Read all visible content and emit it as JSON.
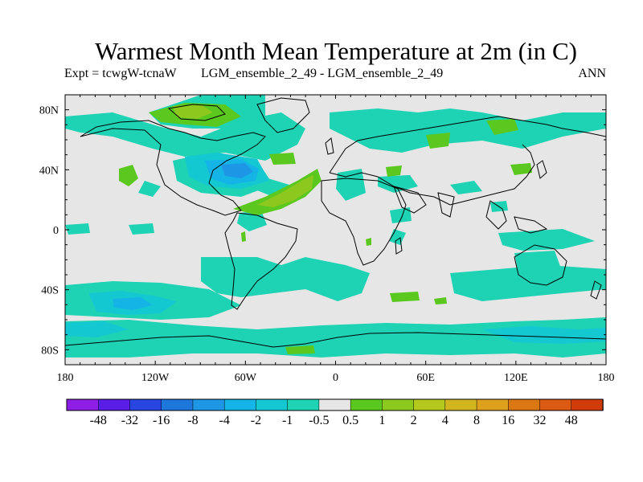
{
  "title": "Warmest Month Mean Temperature at 2m (in C)",
  "subtitle": {
    "experiment": "Expt = tcwgW-tcnaW",
    "cases": "LGM_ensemble_2_49 - LGM_ensemble_2_49",
    "period": "ANN"
  },
  "map": {
    "projection": "cylindrical equidistant",
    "lat_range": [
      -90,
      90
    ],
    "lon_range": [
      -180,
      180
    ],
    "lat_ticks": [
      "80N",
      "40N",
      "0",
      "40S",
      "80S"
    ],
    "lon_ticks": [
      "180",
      "120W",
      "60W",
      "0",
      "60E",
      "120E",
      "180"
    ],
    "background_color": "#e6e6e6"
  },
  "colorbar": {
    "colors": [
      "#8c1ee6",
      "#5a1ee6",
      "#2846e1",
      "#1e78dc",
      "#1e96e6",
      "#14b4e6",
      "#14c8d2",
      "#1ed2b4",
      "#e6e6e6",
      "#5ac81e",
      "#8cc81e",
      "#b4c81e",
      "#d2b41e",
      "#dca01e",
      "#dc7814",
      "#dc5a14",
      "#d23c0a"
    ],
    "labels": [
      "-48",
      "-32",
      "-16",
      "-8",
      "-4",
      "-2",
      "-1",
      "-0.5",
      "0.5",
      "1",
      "2",
      "4",
      "8",
      "16",
      "32",
      "48"
    ]
  }
}
